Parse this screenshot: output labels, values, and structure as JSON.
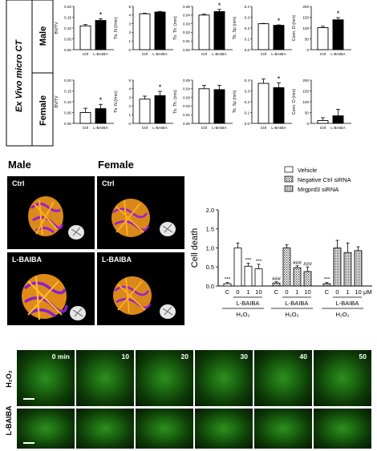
{
  "ct": {
    "section_label": "Ex Vivo micro CT",
    "row_labels": [
      "Male",
      "Female"
    ],
    "panels": [
      {
        "ylabel": "BV/TV",
        "yticks": [
          "0.00",
          "0.05",
          "0.10",
          "0.15",
          "0.20"
        ],
        "ymax": 0.2,
        "ctrl": 0.11,
        "ctrl_err": 0.006,
        "lbaiba": 0.135,
        "lbaiba_err": 0.008,
        "star": "*"
      },
      {
        "ylabel": "Tb. N (/mm)",
        "yticks": [
          "0",
          "1",
          "2",
          "3",
          "4",
          "5"
        ],
        "ymax": 5,
        "ctrl": 4.15,
        "ctrl_err": 0.06,
        "lbaiba": 4.35,
        "lbaiba_err": 0.07,
        "star": ""
      },
      {
        "ylabel": "Tb. Th. (mm)",
        "yticks": [
          "0.00",
          "0.01",
          "0.02",
          "0.03",
          "0.04",
          "0.05"
        ],
        "ymax": 0.05,
        "ctrl": 0.04,
        "ctrl_err": 0.001,
        "lbaiba": 0.044,
        "lbaiba_err": 0.0025,
        "star": "*"
      },
      {
        "ylabel": "Tb. Sp (mm)",
        "yticks": [
          "0.0",
          "0.1",
          "0.2",
          "0.3",
          "0.4"
        ],
        "ymax": 0.4,
        "ctrl": 0.24,
        "ctrl_err": 0.003,
        "lbaiba": 0.225,
        "lbaiba_err": 0.004,
        "star": "*"
      },
      {
        "ylabel": "Conn. D (mm)",
        "yticks": [
          "0",
          "50",
          "100",
          "150",
          "200"
        ],
        "ymax": 200,
        "ctrl": 102,
        "ctrl_err": 6,
        "lbaiba": 138,
        "lbaiba_err": 10,
        "star": "*"
      },
      {
        "ylabel": "BV/TV",
        "yticks": [
          "0.00",
          "0.05",
          "0.10",
          "0.15",
          "0.20"
        ],
        "ymax": 0.2,
        "ctrl": 0.05,
        "ctrl_err": 0.02,
        "lbaiba": 0.068,
        "lbaiba_err": 0.02,
        "star": "*"
      },
      {
        "ylabel": "Tb. N (/mm)",
        "yticks": [
          "0",
          "1",
          "2",
          "3",
          "4",
          "5"
        ],
        "ymax": 5,
        "ctrl": 2.8,
        "ctrl_err": 0.35,
        "lbaiba": 3.2,
        "lbaiba_err": 0.5,
        "star": "*"
      },
      {
        "ylabel": "Tb. Th. (mm)",
        "yticks": [
          "0.00",
          "0.01",
          "0.02",
          "0.03",
          "0.04",
          "0.05"
        ],
        "ymax": 0.05,
        "ctrl": 0.04,
        "ctrl_err": 0.004,
        "lbaiba": 0.039,
        "lbaiba_err": 0.005,
        "star": ""
      },
      {
        "ylabel": "Tb. Sp (mm)",
        "yticks": [
          "0.0",
          "0.1",
          "0.2",
          "0.3",
          "0.4"
        ],
        "ymax": 0.4,
        "ctrl": 0.37,
        "ctrl_err": 0.04,
        "lbaiba": 0.33,
        "lbaiba_err": 0.045,
        "star": "*"
      },
      {
        "ylabel": "Conn. D (mm)",
        "yticks": [
          "0",
          "50",
          "100",
          "150",
          "200"
        ],
        "ymax": 200,
        "ctrl": 13,
        "ctrl_err": 13,
        "lbaiba": 35,
        "lbaiba_err": 30,
        "star": ""
      }
    ],
    "xlabels": [
      "Ctrl",
      "L-BAIBA"
    ]
  },
  "images": {
    "col_titles": [
      "Male",
      "Female"
    ],
    "tile_labels": [
      "Ctrl",
      "L-BAIBA"
    ]
  },
  "chart_data": {
    "type": "bar",
    "ylabel": "Cell death",
    "yticks": [
      "0.0",
      "0.5",
      "1.0",
      "1.5",
      "2.0"
    ],
    "ylim": [
      0,
      2.0
    ],
    "legend": [
      "Vehicle",
      "Negative Ctrl siRNA",
      "Mrgprd3 siRNA"
    ],
    "groups": [
      {
        "name": "Vehicle",
        "categories": [
          "C",
          "0",
          "1",
          "10"
        ],
        "values": [
          0.06,
          1.0,
          0.52,
          0.45
        ],
        "errors": [
          0.03,
          0.13,
          0.08,
          0.12
        ],
        "marks": [
          "***",
          "",
          "***",
          "***"
        ]
      },
      {
        "name": "Negative Ctrl siRNA",
        "categories": [
          "C",
          "0",
          "1",
          "10"
        ],
        "values": [
          0.08,
          1.0,
          0.48,
          0.38
        ],
        "errors": [
          0.03,
          0.08,
          0.05,
          0.12
        ],
        "marks": [
          "###",
          "",
          "###",
          "###"
        ]
      },
      {
        "name": "Mrgprd3 siRNA",
        "categories": [
          "C",
          "0",
          "1",
          "10"
        ],
        "values": [
          0.06,
          1.0,
          0.88,
          0.93
        ],
        "errors": [
          0.03,
          0.2,
          0.25,
          0.1
        ],
        "marks": [
          "***",
          "",
          "",
          ""
        ]
      }
    ],
    "unit": "μM",
    "treatment_label": "L-BAIBA",
    "h2o2_label": "H₂O₂"
  },
  "timelapse": {
    "row_labels": [
      "H₂O₂",
      "L-BAIBA"
    ],
    "times": [
      "0 min",
      "10",
      "20",
      "30",
      "40",
      "50"
    ]
  }
}
